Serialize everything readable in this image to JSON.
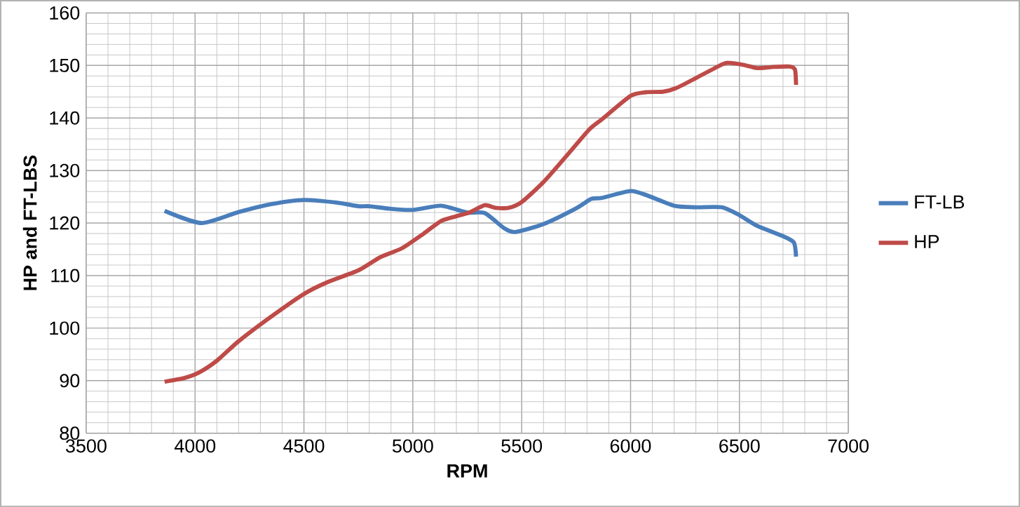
{
  "chart_data": {
    "type": "line",
    "xlabel": "RPM",
    "ylabel": "HP and FT-LBS",
    "xlim": [
      3500,
      7000
    ],
    "xticks": [
      3500,
      4000,
      4500,
      5000,
      5500,
      6000,
      6500,
      7000
    ],
    "ylim": [
      80,
      160
    ],
    "yticks": [
      80,
      90,
      100,
      110,
      120,
      130,
      140,
      150,
      160
    ],
    "grid": true,
    "legend": "right",
    "marker": "none",
    "series": [
      {
        "name": "FT-LB",
        "color": "#4a7ebb",
        "x": [
          3860,
          4030,
          4200,
          4350,
          4500,
          4650,
          4750,
          4800,
          4900,
          5000,
          5130,
          5250,
          5330,
          5420,
          5470,
          5600,
          5750,
          5820,
          5870,
          6000,
          6080,
          6200,
          6300,
          6420,
          6500,
          6580,
          6700,
          6750,
          6760
        ],
        "values": [
          122.3,
          120.0,
          122.1,
          123.6,
          124.4,
          123.9,
          123.2,
          123.2,
          122.7,
          122.5,
          123.3,
          122.0,
          121.9,
          119.0,
          118.3,
          119.8,
          122.8,
          124.6,
          124.8,
          126.1,
          125.2,
          123.3,
          123.0,
          123.0,
          121.5,
          119.5,
          117.5,
          116.3,
          113.6
        ]
      },
      {
        "name": "HP",
        "color": "#be4b48",
        "x": [
          3860,
          3950,
          4020,
          4100,
          4200,
          4350,
          4500,
          4600,
          4750,
          4850,
          4950,
          5050,
          5130,
          5200,
          5260,
          5330,
          5380,
          5440,
          5500,
          5600,
          5700,
          5810,
          5870,
          6000,
          6070,
          6150,
          6210,
          6300,
          6420,
          6450,
          6520,
          6580,
          6650,
          6730,
          6755,
          6760
        ],
        "values": [
          89.8,
          90.5,
          91.6,
          93.8,
          97.5,
          102.2,
          106.5,
          108.6,
          111.0,
          113.5,
          115.2,
          118.0,
          120.4,
          121.3,
          122.0,
          123.4,
          122.9,
          122.9,
          124.0,
          127.8,
          132.5,
          137.8,
          139.8,
          144.2,
          144.9,
          145.0,
          145.7,
          147.6,
          150.2,
          150.5,
          150.1,
          149.5,
          149.7,
          149.8,
          149.2,
          146.3
        ]
      }
    ]
  }
}
